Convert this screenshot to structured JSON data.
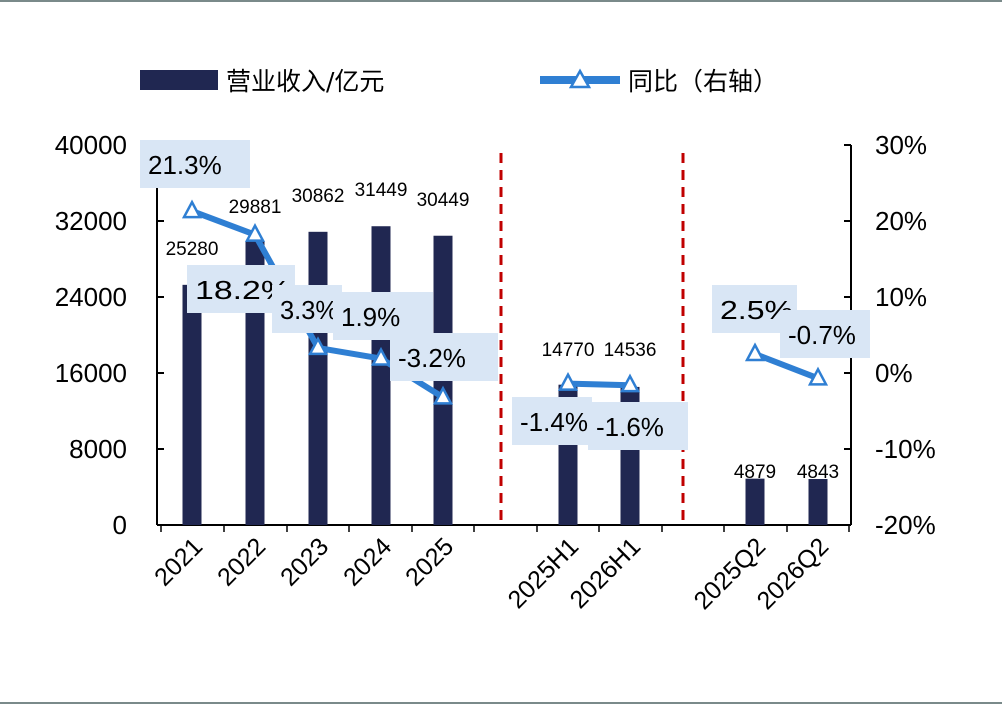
{
  "chart_data": {
    "type": "bar",
    "categories": [
      "2021",
      "2022",
      "2023",
      "2024",
      "2025",
      "2025H1",
      "2026H1",
      "2025Q2",
      "2026Q2"
    ],
    "series": [
      {
        "name": "营业收入/亿元",
        "type": "bar",
        "axis": "left",
        "values": [
          25280,
          29881,
          30862,
          31449,
          30449,
          14770,
          14536,
          4879,
          4843
        ],
        "labels": [
          "25280",
          "29881",
          "30862",
          "31449",
          "30449",
          "14770",
          "14536",
          "4879",
          "4843"
        ]
      },
      {
        "name": "同比（右轴）",
        "type": "line",
        "axis": "right",
        "groups": [
          [
            0,
            1,
            2,
            3,
            4
          ],
          [
            5,
            6
          ],
          [
            7,
            8
          ]
        ],
        "values": [
          21.3,
          18.2,
          3.3,
          1.9,
          -3.2,
          -1.4,
          -1.6,
          2.5,
          -0.7
        ],
        "labels": [
          "21.3%",
          "18.2%",
          "3.3%",
          "1.9%",
          "-3.2%",
          "-1.4%",
          "-1.6%",
          "2.5%",
          "-0.7%"
        ]
      }
    ],
    "y_left": {
      "min": 0,
      "max": 40000,
      "ticks": [
        "0",
        "8000",
        "16000",
        "24000",
        "32000",
        "40000"
      ]
    },
    "y_right": {
      "min": -20,
      "max": 30,
      "ticks": [
        "-20%",
        "-10%",
        "0%",
        "10%",
        "20%",
        "30%"
      ]
    },
    "separators_after": [
      4,
      6
    ],
    "colors": {
      "bar": "#202751",
      "line": "#2f7fd3",
      "marker_fill": "#ffffff",
      "label_bg": "#d9e6f5",
      "separator": "#c00000",
      "frame": "#7a8a8a"
    },
    "grid": false,
    "legend": "top"
  }
}
